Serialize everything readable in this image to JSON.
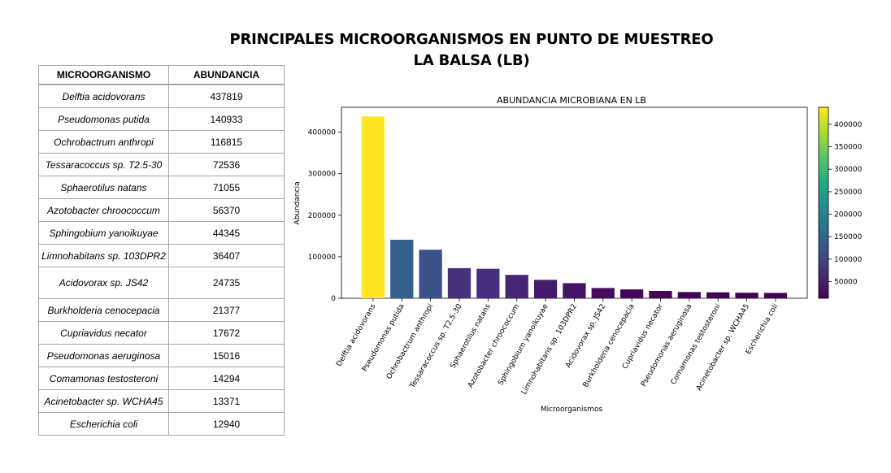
{
  "page": {
    "title_line1": "PRINCIPALES MICROORGANISMOS EN PUNTO DE MUESTREO",
    "title_line2": "LA BALSA (LB)"
  },
  "table": {
    "headers": [
      "MICROORGANISMO",
      "ABUNDANCIA"
    ],
    "rows": [
      {
        "name": "Delftia acidovorans",
        "value": "437819"
      },
      {
        "name": "Pseudomonas putida",
        "value": "140933"
      },
      {
        "name": "Ochrobactrum anthropi",
        "value": "116815"
      },
      {
        "name": "Tessaracoccus sp. T2.5-30",
        "value": "72536"
      },
      {
        "name": "Sphaerotilus natans",
        "value": "71055"
      },
      {
        "name": "Azotobacter chroococcum",
        "value": "56370"
      },
      {
        "name": "Sphingobium yanoikuyae",
        "value": "44345"
      },
      {
        "name": "Limnohabitans sp. 103DPR2",
        "value": "36407"
      },
      {
        "name": "Acidovorax sp. JS42",
        "value": "24735"
      },
      {
        "name": "Burkholderia cenocepacia",
        "value": "21377"
      },
      {
        "name": "Cupriavidus necator",
        "value": "17672"
      },
      {
        "name": "Pseudomonas aeruginosa",
        "value": "15016"
      },
      {
        "name": "Comamonas testosteroni",
        "value": "14294"
      },
      {
        "name": "Acinetobacter sp. WCHA45",
        "value": "13371"
      },
      {
        "name": "Escherichia coli",
        "value": "12940"
      }
    ]
  },
  "chart_data": {
    "type": "bar",
    "title": "ABUNDANCIA MICROBIANA EN LB",
    "xlabel": "Microorganismos",
    "ylabel": "Abundancia",
    "ylim": [
      0,
      460000
    ],
    "yticks": [
      0,
      100000,
      200000,
      300000,
      400000
    ],
    "ytick_labels": [
      "0",
      "100000",
      "200000",
      "300000",
      "400000"
    ],
    "categories": [
      "Delftia acidovorans",
      "Pseudomonas putida",
      "Ochrobactrum anthropi",
      "Tessaracoccus sp. T2.5-30",
      "Sphaerotilus natans",
      "Azotobacter chroococcum",
      "Sphingobium yanoikuyae",
      "Limnohabitans sp. 103DPR2",
      "Acidovorax sp. JS42",
      "Burkholderia cenocepacia",
      "Cupriavidus necator",
      "Pseudomonas aeruginosa",
      "Comamonas testosteroni",
      "Acinetobacter sp. WCHA45",
      "Escherichia coli"
    ],
    "values": [
      437819,
      140933,
      116815,
      72536,
      71055,
      56370,
      44345,
      36407,
      24735,
      21377,
      17672,
      15016,
      14294,
      13371,
      12940
    ],
    "colormap": "viridis",
    "colorbar": {
      "range": [
        12940,
        437819
      ],
      "ticks": [
        50000,
        100000,
        150000,
        200000,
        250000,
        300000,
        350000,
        400000
      ],
      "tick_labels": [
        "50000",
        "100000",
        "150000",
        "200000",
        "250000",
        "300000",
        "350000",
        "400000"
      ]
    },
    "grid": false,
    "legend": "none"
  }
}
